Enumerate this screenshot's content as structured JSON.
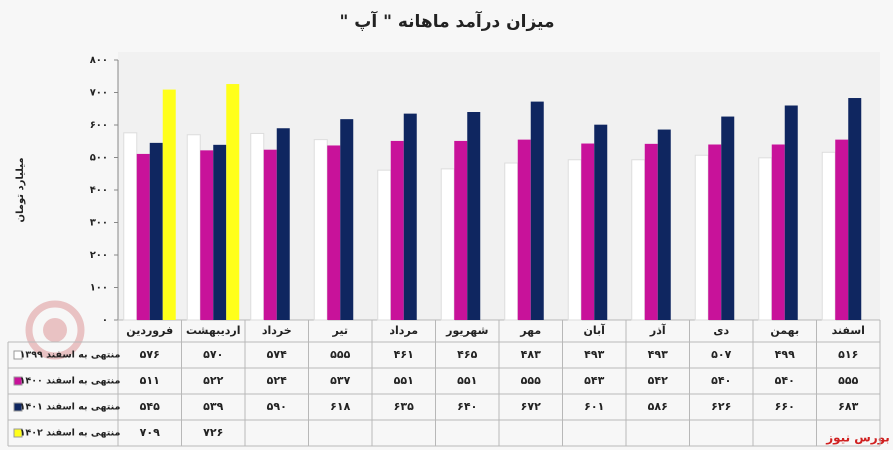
{
  "chart_data": {
    "type": "bar",
    "title": "میزان درآمد ماهانه \" آپ \"",
    "y_label": "میلیارد تومان",
    "source": "بورس نیوز",
    "categories": [
      "فروردین",
      "اردیبهشت",
      "خرداد",
      "تیر",
      "مرداد",
      "شهریور",
      "مهر",
      "آبان",
      "آذر",
      "دی",
      "بهمن",
      "اسفند"
    ],
    "ylim": [
      0,
      800
    ],
    "yticks": [
      {
        "value": 0,
        "label": "۰"
      },
      {
        "value": 100,
        "label": "۱۰۰"
      },
      {
        "value": 200,
        "label": "۲۰۰"
      },
      {
        "value": 300,
        "label": "۳۰۰"
      },
      {
        "value": 400,
        "label": "۴۰۰"
      },
      {
        "value": 500,
        "label": "۵۰۰"
      },
      {
        "value": 600,
        "label": "۶۰۰"
      },
      {
        "value": 700,
        "label": "۷۰۰"
      },
      {
        "value": 800,
        "label": "۸۰۰"
      }
    ],
    "grid": false,
    "series": [
      {
        "name": "منتهی به اسفند ۱۳۹۹",
        "color": "#ffffff",
        "values": [
          576,
          570,
          574,
          555,
          461,
          465,
          483,
          493,
          493,
          507,
          499,
          516
        ],
        "value_labels": [
          "۵۷۶",
          "۵۷۰",
          "۵۷۴",
          "۵۵۵",
          "۴۶۱",
          "۴۶۵",
          "۴۸۳",
          "۴۹۳",
          "۴۹۳",
          "۵۰۷",
          "۴۹۹",
          "۵۱۶"
        ]
      },
      {
        "name": "منتهی به اسفند ۱۴۰۰",
        "color": "#c8129a",
        "values": [
          511,
          522,
          524,
          537,
          551,
          551,
          555,
          543,
          542,
          540,
          540,
          555
        ],
        "value_labels": [
          "۵۱۱",
          "۵۲۲",
          "۵۲۴",
          "۵۳۷",
          "۵۵۱",
          "۵۵۱",
          "۵۵۵",
          "۵۴۳",
          "۵۴۲",
          "۵۴۰",
          "۵۴۰",
          "۵۵۵"
        ]
      },
      {
        "name": "منتهی به اسفند ۱۴۰۱",
        "color": "#0f2660",
        "values": [
          545,
          539,
          590,
          618,
          635,
          640,
          672,
          601,
          586,
          626,
          660,
          683
        ],
        "value_labels": [
          "۵۴۵",
          "۵۳۹",
          "۵۹۰",
          "۶۱۸",
          "۶۳۵",
          "۶۴۰",
          "۶۷۲",
          "۶۰۱",
          "۵۸۶",
          "۶۲۶",
          "۶۶۰",
          "۶۸۳"
        ]
      },
      {
        "name": "منتهی به اسفند ۱۴۰۲",
        "color": "#ffff1a",
        "values": [
          709,
          726,
          null,
          null,
          null,
          null,
          null,
          null,
          null,
          null,
          null,
          null
        ],
        "value_labels": [
          "۷۰۹",
          "۷۲۶",
          null,
          null,
          null,
          null,
          null,
          null,
          null,
          null,
          null,
          null
        ]
      }
    ]
  }
}
